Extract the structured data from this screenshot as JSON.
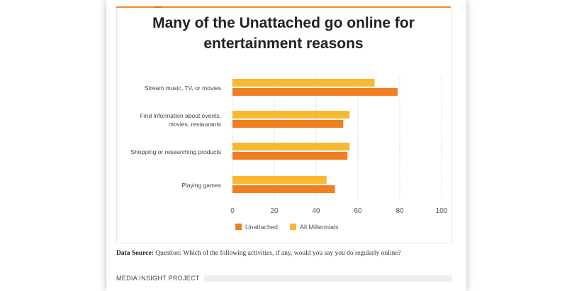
{
  "title_lines": [
    "Many of the Unattached go online for",
    "entertainment reasons"
  ],
  "source_label": "Data Source:",
  "source_text": "Question: Which of the following activities, if any, would you say you do regularly online?",
  "footer": "MEDIA INSIGHT PROJECT",
  "chart_data": {
    "type": "bar",
    "orientation": "horizontal",
    "title": "Many of the Unattached go online for entertainment reasons",
    "categories": [
      [
        "Stream music, TV, or movies"
      ],
      [
        "Find information about events,",
        "movies, restaurants"
      ],
      [
        "Shopping or researching products"
      ],
      [
        "Playing games"
      ]
    ],
    "series": [
      {
        "name": "All Millennials",
        "color": "#f7b92f",
        "values": [
          68,
          56,
          56,
          45
        ]
      },
      {
        "name": "Unattached",
        "color": "#f07f22",
        "values": [
          79,
          53,
          55,
          49
        ]
      }
    ],
    "legend": [
      "Unattached",
      "All Millennials"
    ],
    "xlim": [
      0,
      100
    ],
    "xticks": [
      0,
      20,
      40,
      60,
      80,
      100
    ],
    "grid": "vertical dotted",
    "legend_position": "bottom-center"
  }
}
